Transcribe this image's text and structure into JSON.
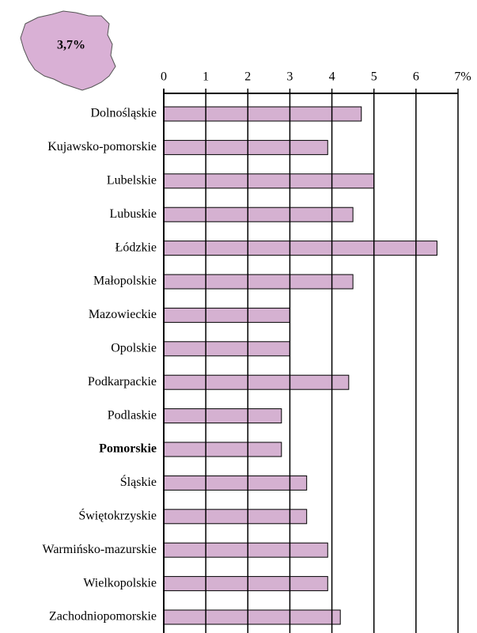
{
  "chart_data": {
    "type": "hbar",
    "annotation": "3,7%",
    "categories": [
      "Dolnośląskie",
      "Kujawsko-pomorskie",
      "Lubelskie",
      "Lubuskie",
      "Łódzkie",
      "Małopolskie",
      "Mazowieckie",
      "Opolskie",
      "Podkarpackie",
      "Podlaskie",
      "Pomorskie",
      "Śląskie",
      "Świętokrzyskie",
      "Warmińsko-mazurskie",
      "Wielkopolskie",
      "Zachodniopomorskie"
    ],
    "values": [
      4.7,
      3.9,
      5.0,
      4.5,
      6.5,
      4.5,
      3.0,
      3.0,
      4.4,
      2.8,
      2.8,
      3.4,
      3.4,
      3.9,
      3.9,
      4.2
    ],
    "color": "#d5b1d1",
    "highlight_category": "Pomorskie",
    "xlim": [
      0,
      7
    ],
    "xticks": [
      0,
      1,
      2,
      3,
      4,
      5,
      6,
      {
        "value": 7,
        "label": "7%"
      }
    ],
    "grid": true
  }
}
